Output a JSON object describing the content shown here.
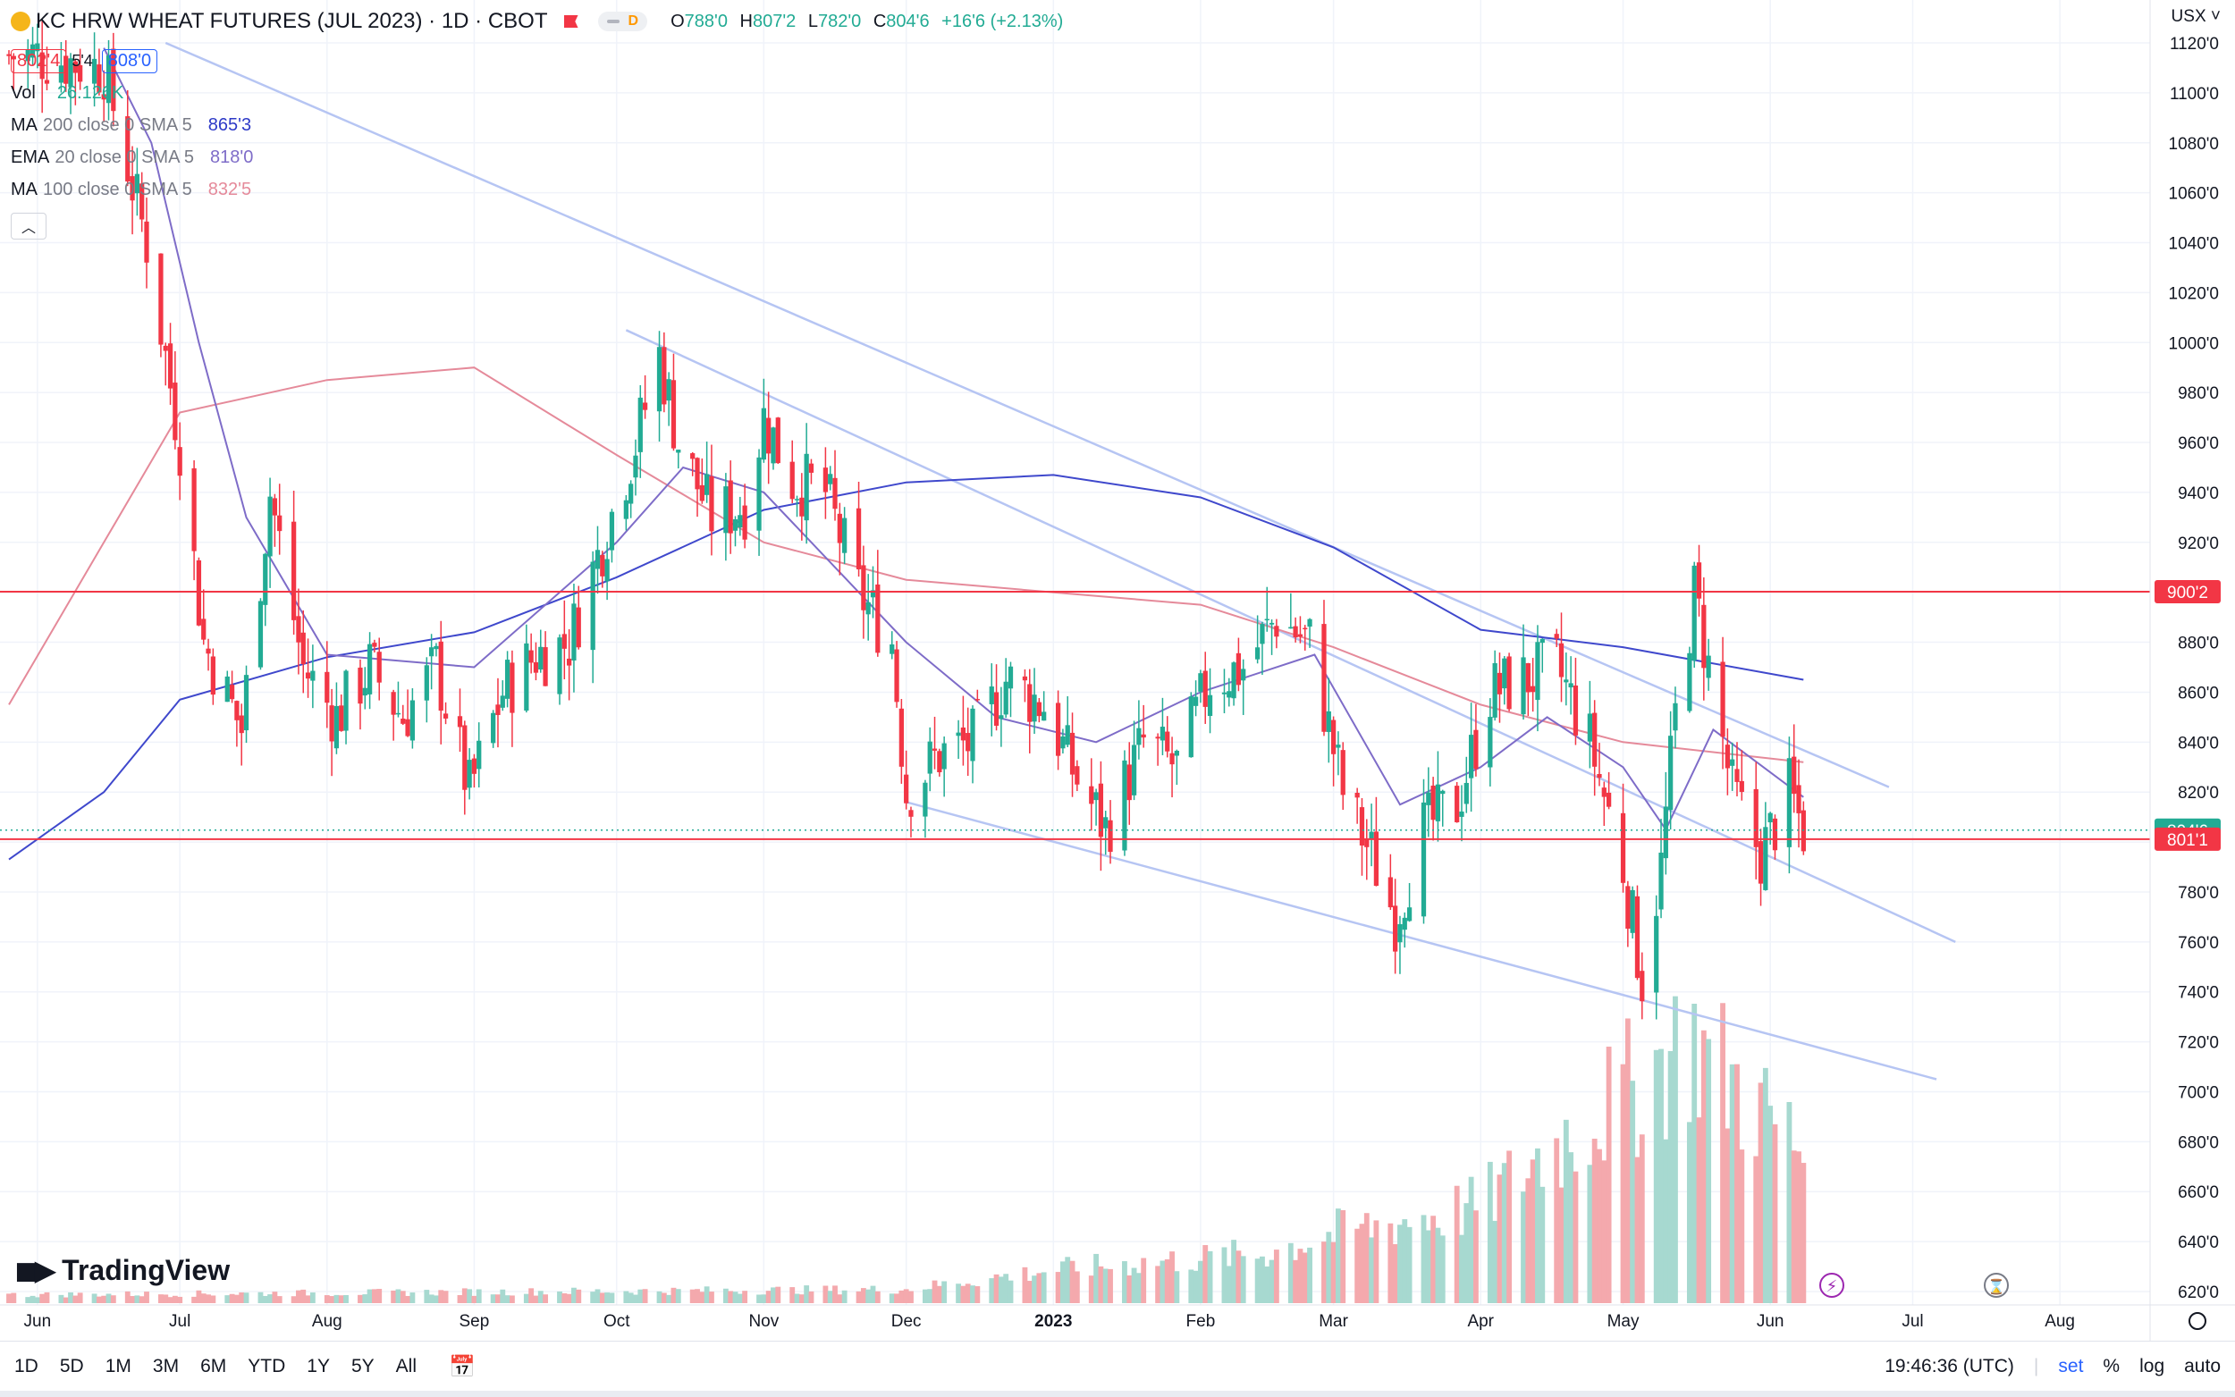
{
  "header": {
    "title": "KC HRW WHEAT FUTURES (JUL 2023) · 1D · CBOT",
    "pill_letter": "D",
    "ohlc": {
      "o_label": "O",
      "o": "788'0",
      "h_label": "H",
      "h": "807'2",
      "l_label": "L",
      "l": "782'0",
      "c_label": "C",
      "c": "804'6",
      "change": "+16'6 (+2.13%)"
    },
    "bid": "802'4",
    "spread": "5'4",
    "ask": "808'0"
  },
  "indicators": [
    {
      "name": "Vol",
      "params": "",
      "value": "26.126K",
      "color": "#22ab94"
    },
    {
      "name": "MA",
      "params": "200 close 0 SMA 5",
      "value": "865'3",
      "color": "#2e3ac7"
    },
    {
      "name": "EMA",
      "params": "20 close 0 SMA 5",
      "value": "818'0",
      "color": "#7e6cc8"
    },
    {
      "name": "MA",
      "params": "100 close 0 SMA 5",
      "value": "832'5",
      "color": "#e58a9a"
    }
  ],
  "currency_label": "USX",
  "logo_text": "TradingView",
  "bottom_bar": {
    "ranges": [
      "1D",
      "5D",
      "1M",
      "3M",
      "6M",
      "YTD",
      "1Y",
      "5Y",
      "All"
    ],
    "time": "19:46:36 (UTC)",
    "set": "set",
    "percent": "%",
    "log": "log",
    "auto": "auto"
  },
  "colors": {
    "up": "#22ab94",
    "down": "#f23645",
    "up_vol": "#a7d9d0",
    "down_vol": "#f4a9ad",
    "hline": "#f23645",
    "trend": "#b6c5f3"
  },
  "chart_data": {
    "type": "candlestick",
    "y_axis": {
      "min": 620,
      "max": 1120,
      "step": 20,
      "tick_labels": [
        "620'0",
        "640'0",
        "660'0",
        "680'0",
        "700'0",
        "720'0",
        "740'0",
        "760'0",
        "780'0",
        "800'0",
        "820'0",
        "840'0",
        "860'0",
        "880'0",
        "900'0",
        "920'0",
        "940'0",
        "960'0",
        "980'0",
        "1000'0",
        "1020'0",
        "1040'0",
        "1060'0",
        "1080'0",
        "1100'0",
        "1120'0"
      ]
    },
    "x_axis": {
      "labels": [
        "Jun",
        "Jul",
        "Aug",
        "Sep",
        "Oct",
        "Nov",
        "Dec",
        "2023",
        "Feb",
        "Mar",
        "Apr",
        "May",
        "Jun",
        "Jul",
        "Aug"
      ],
      "dates": [
        "2022-06-01",
        "2022-07-01",
        "2022-08-01",
        "2022-09-01",
        "2022-10-01",
        "2022-11-01",
        "2022-12-01",
        "2023-01-01",
        "2023-02-01",
        "2023-03-01",
        "2023-04-01",
        "2023-05-01",
        "2023-06-01",
        "2023-07-01",
        "2023-08-01"
      ]
    },
    "horizontal_lines": [
      {
        "price": 900.25,
        "label": "900'2"
      },
      {
        "price": 801.125,
        "label": "801'1"
      }
    ],
    "last_price": {
      "price": 804.75,
      "label": "804'6"
    },
    "trend_lines": [
      {
        "from": [
          "2022-06-28",
          1120
        ],
        "to": [
          "2023-06-26",
          822
        ]
      },
      {
        "from": [
          "2022-10-03",
          1005
        ],
        "to": [
          "2023-07-10",
          760
        ]
      },
      {
        "from": [
          "2022-12-01",
          816
        ],
        "to": [
          "2023-07-06",
          705
        ]
      }
    ],
    "price_series": [
      {
        "date": "2022-06-01",
        "close": 1115
      },
      {
        "date": "2022-06-15",
        "close": 1110
      },
      {
        "date": "2022-06-24",
        "close": 1040
      },
      {
        "date": "2022-07-01",
        "close": 960
      },
      {
        "date": "2022-07-06",
        "close": 880
      },
      {
        "date": "2022-07-14",
        "close": 845
      },
      {
        "date": "2022-07-20",
        "close": 940
      },
      {
        "date": "2022-07-27",
        "close": 870
      },
      {
        "date": "2022-08-03",
        "close": 850
      },
      {
        "date": "2022-08-10",
        "close": 870
      },
      {
        "date": "2022-08-17",
        "close": 850
      },
      {
        "date": "2022-08-24",
        "close": 870
      },
      {
        "date": "2022-08-31",
        "close": 820
      },
      {
        "date": "2022-09-07",
        "close": 860
      },
      {
        "date": "2022-09-14",
        "close": 875
      },
      {
        "date": "2022-09-21",
        "close": 880
      },
      {
        "date": "2022-09-28",
        "close": 920
      },
      {
        "date": "2022-10-05",
        "close": 960
      },
      {
        "date": "2022-10-10",
        "close": 995
      },
      {
        "date": "2022-10-14",
        "close": 960
      },
      {
        "date": "2022-10-21",
        "close": 930
      },
      {
        "date": "2022-10-28",
        "close": 935
      },
      {
        "date": "2022-11-01",
        "close": 970
      },
      {
        "date": "2022-11-07",
        "close": 945
      },
      {
        "date": "2022-11-14",
        "close": 940
      },
      {
        "date": "2022-11-21",
        "close": 900
      },
      {
        "date": "2022-11-28",
        "close": 880
      },
      {
        "date": "2022-12-01",
        "close": 820
      },
      {
        "date": "2022-12-08",
        "close": 835
      },
      {
        "date": "2022-12-15",
        "close": 840
      },
      {
        "date": "2022-12-22",
        "close": 865
      },
      {
        "date": "2022-12-30",
        "close": 855
      },
      {
        "date": "2023-01-06",
        "close": 825
      },
      {
        "date": "2023-01-12",
        "close": 805
      },
      {
        "date": "2023-01-20",
        "close": 840
      },
      {
        "date": "2023-01-27",
        "close": 830
      },
      {
        "date": "2023-02-03",
        "close": 865
      },
      {
        "date": "2023-02-10",
        "close": 870
      },
      {
        "date": "2023-02-17",
        "close": 890
      },
      {
        "date": "2023-02-24",
        "close": 880
      },
      {
        "date": "2023-03-03",
        "close": 820
      },
      {
        "date": "2023-03-10",
        "close": 790
      },
      {
        "date": "2023-03-14",
        "close": 770
      },
      {
        "date": "2023-03-20",
        "close": 805
      },
      {
        "date": "2023-03-27",
        "close": 815
      },
      {
        "date": "2023-04-03",
        "close": 860
      },
      {
        "date": "2023-04-10",
        "close": 865
      },
      {
        "date": "2023-04-17",
        "close": 870
      },
      {
        "date": "2023-04-24",
        "close": 840
      },
      {
        "date": "2023-05-01",
        "close": 790
      },
      {
        "date": "2023-05-05",
        "close": 745
      },
      {
        "date": "2023-05-09",
        "close": 790
      },
      {
        "date": "2023-05-12",
        "close": 850
      },
      {
        "date": "2023-05-16",
        "close": 900
      },
      {
        "date": "2023-05-19",
        "close": 870
      },
      {
        "date": "2023-05-24",
        "close": 820
      },
      {
        "date": "2023-05-30",
        "close": 795
      },
      {
        "date": "2023-06-05",
        "close": 820
      },
      {
        "date": "2023-06-08",
        "close": 805
      }
    ],
    "ma200": [
      {
        "date": "2022-05-26",
        "value": 793
      },
      {
        "date": "2022-06-15",
        "value": 820
      },
      {
        "date": "2022-07-01",
        "value": 857
      },
      {
        "date": "2022-08-01",
        "value": 874
      },
      {
        "date": "2022-09-01",
        "value": 884
      },
      {
        "date": "2022-10-01",
        "value": 906
      },
      {
        "date": "2022-11-01",
        "value": 933
      },
      {
        "date": "2022-12-01",
        "value": 944
      },
      {
        "date": "2023-01-01",
        "value": 947
      },
      {
        "date": "2023-02-01",
        "value": 938
      },
      {
        "date": "2023-03-01",
        "value": 918
      },
      {
        "date": "2023-04-01",
        "value": 885
      },
      {
        "date": "2023-05-01",
        "value": 878
      },
      {
        "date": "2023-06-08",
        "value": 865
      }
    ],
    "ema20": [
      {
        "date": "2022-06-15",
        "value": 1118
      },
      {
        "date": "2022-06-25",
        "value": 1080
      },
      {
        "date": "2022-07-05",
        "value": 1000
      },
      {
        "date": "2022-07-15",
        "value": 930
      },
      {
        "date": "2022-08-01",
        "value": 875
      },
      {
        "date": "2022-09-01",
        "value": 870
      },
      {
        "date": "2022-10-01",
        "value": 920
      },
      {
        "date": "2022-10-15",
        "value": 950
      },
      {
        "date": "2022-11-01",
        "value": 940
      },
      {
        "date": "2022-12-01",
        "value": 880
      },
      {
        "date": "2022-12-20",
        "value": 850
      },
      {
        "date": "2023-01-10",
        "value": 840
      },
      {
        "date": "2023-02-01",
        "value": 860
      },
      {
        "date": "2023-02-25",
        "value": 875
      },
      {
        "date": "2023-03-15",
        "value": 815
      },
      {
        "date": "2023-04-01",
        "value": 830
      },
      {
        "date": "2023-04-15",
        "value": 850
      },
      {
        "date": "2023-05-01",
        "value": 830
      },
      {
        "date": "2023-05-10",
        "value": 805
      },
      {
        "date": "2023-05-20",
        "value": 845
      },
      {
        "date": "2023-06-08",
        "value": 818
      }
    ],
    "ma100": [
      {
        "date": "2022-05-26",
        "value": 855
      },
      {
        "date": "2022-06-15",
        "value": 920
      },
      {
        "date": "2022-07-01",
        "value": 972
      },
      {
        "date": "2022-08-01",
        "value": 985
      },
      {
        "date": "2022-09-01",
        "value": 990
      },
      {
        "date": "2022-10-01",
        "value": 955
      },
      {
        "date": "2022-11-01",
        "value": 920
      },
      {
        "date": "2022-12-01",
        "value": 905
      },
      {
        "date": "2023-01-01",
        "value": 900
      },
      {
        "date": "2023-02-01",
        "value": 895
      },
      {
        "date": "2023-03-01",
        "value": 878
      },
      {
        "date": "2023-04-01",
        "value": 855
      },
      {
        "date": "2023-05-01",
        "value": 840
      },
      {
        "date": "2023-06-08",
        "value": 832
      }
    ],
    "volume": {
      "start": "2022-05-26",
      "end": "2023-06-08",
      "profile": [
        {
          "date": "2022-05-26",
          "level": 0.03
        },
        {
          "date": "2022-12-01",
          "level": 0.05
        },
        {
          "date": "2023-01-01",
          "level": 0.12
        },
        {
          "date": "2023-02-15",
          "level": 0.18
        },
        {
          "date": "2023-03-01",
          "level": 0.25
        },
        {
          "date": "2023-04-01",
          "level": 0.35
        },
        {
          "date": "2023-04-15",
          "level": 0.55
        },
        {
          "date": "2023-05-01",
          "level": 0.75
        },
        {
          "date": "2023-05-15",
          "level": 0.95
        },
        {
          "date": "2023-06-08",
          "level": 0.55
        }
      ]
    }
  }
}
